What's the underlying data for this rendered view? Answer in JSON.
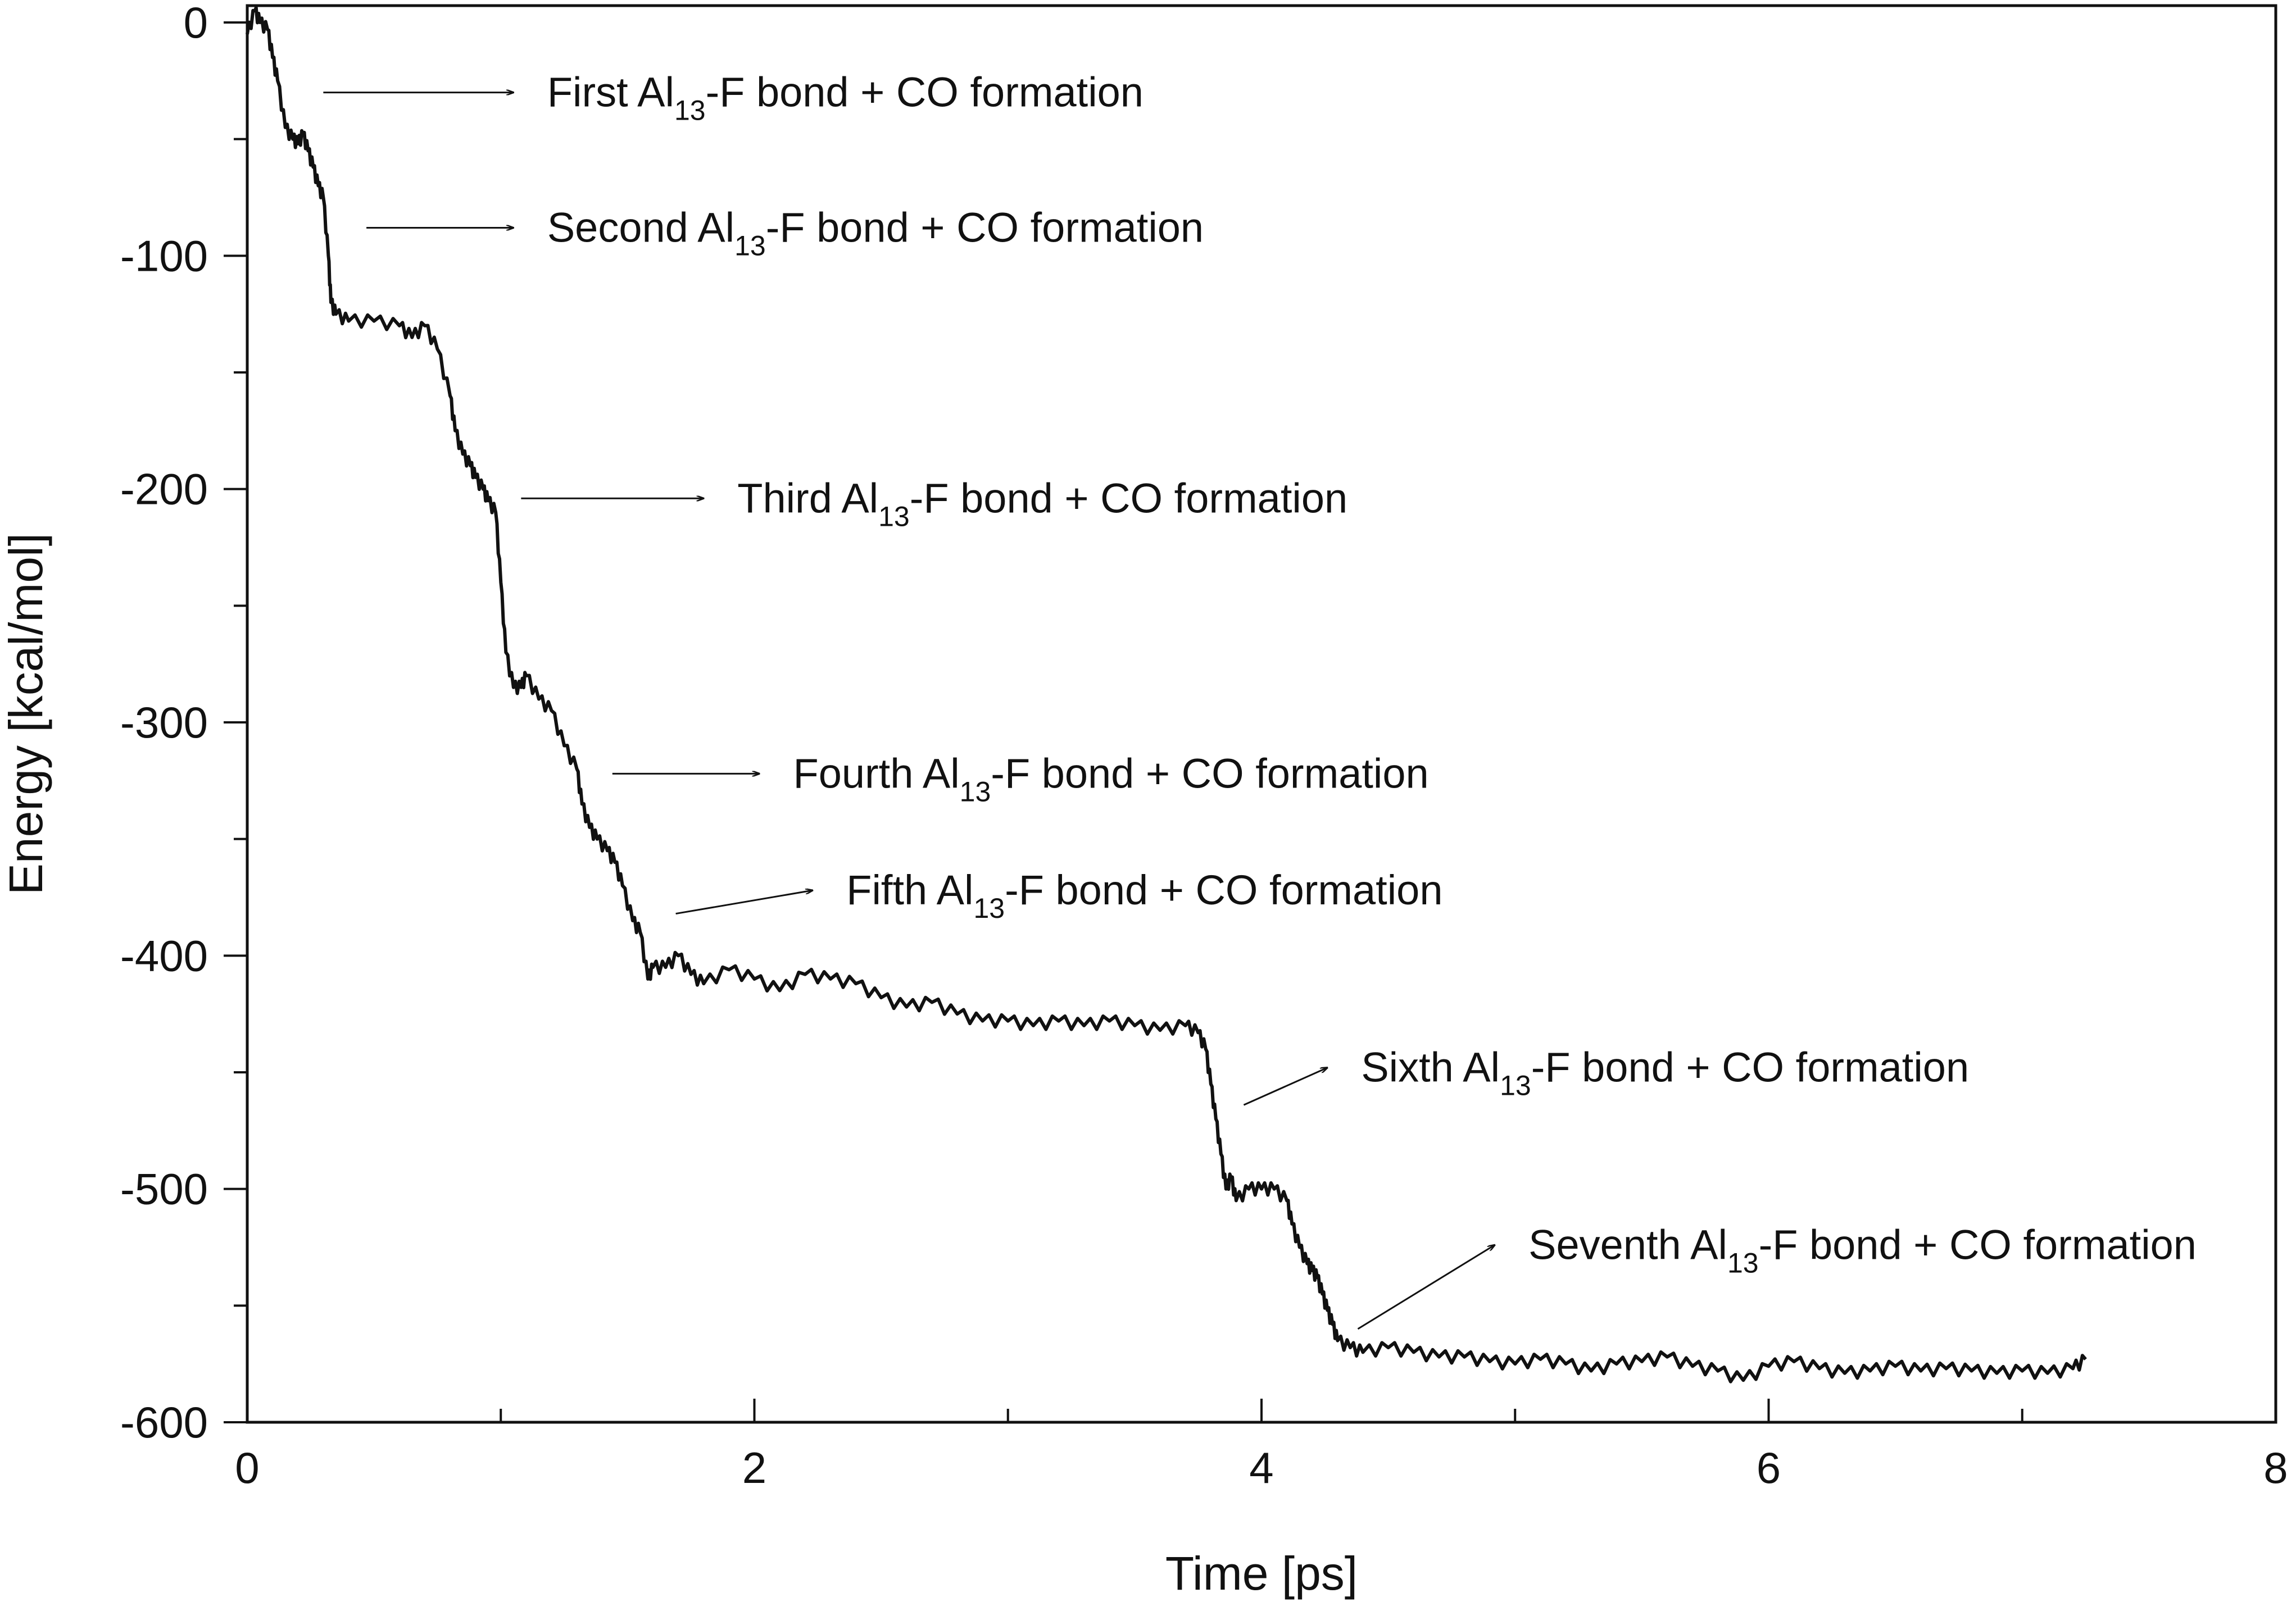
{
  "chart_data": {
    "type": "line",
    "title": "",
    "xlabel": "Time [ps]",
    "ylabel": "Energy [kcal/mol]",
    "xlim": [
      0,
      8
    ],
    "ylim": [
      -600,
      0
    ],
    "xticks": [
      0,
      2,
      4,
      6,
      8
    ],
    "xtick_labels": [
      "0",
      "2",
      "4",
      "6",
      "8"
    ],
    "x_minor_step": 1,
    "yticks": [
      0,
      -100,
      -200,
      -300,
      -400,
      -500,
      -600
    ],
    "ytick_labels": [
      "0",
      "-100",
      "-200",
      "-300",
      "-400",
      "-500",
      "-600"
    ],
    "y_minor_step": 50,
    "grid": false,
    "series": [
      {
        "name": "Energy",
        "color": "#111111",
        "x": [
          0.0,
          0.03,
          0.05,
          0.08,
          0.1,
          0.12,
          0.15,
          0.18,
          0.2,
          0.22,
          0.24,
          0.26,
          0.28,
          0.3,
          0.32,
          0.33,
          0.35,
          0.4,
          0.5,
          0.6,
          0.65,
          0.7,
          0.75,
          0.8,
          0.82,
          0.85,
          0.88,
          0.9,
          0.93,
          0.95,
          0.98,
          1.0,
          1.02,
          1.05,
          1.08,
          1.1,
          1.15,
          1.2,
          1.25,
          1.3,
          1.32,
          1.35,
          1.38,
          1.42,
          1.45,
          1.48,
          1.52,
          1.55,
          1.58,
          1.6,
          1.65,
          1.7,
          1.75,
          1.8,
          1.9,
          2.0,
          2.1,
          2.2,
          2.3,
          2.4,
          2.5,
          2.6,
          2.7,
          2.8,
          2.9,
          3.0,
          3.1,
          3.2,
          3.3,
          3.4,
          3.5,
          3.6,
          3.7,
          3.75,
          3.78,
          3.8,
          3.82,
          3.84,
          3.86,
          3.88,
          3.9,
          3.95,
          4.0,
          4.05,
          4.1,
          4.12,
          4.15,
          4.18,
          4.2,
          4.22,
          4.24,
          4.26,
          4.28,
          4.3,
          4.35,
          4.4,
          4.5,
          4.6,
          4.7,
          4.8,
          4.9,
          5.0,
          5.1,
          5.2,
          5.3,
          5.4,
          5.5,
          5.6,
          5.7,
          5.8,
          5.9,
          6.0,
          6.1,
          6.2,
          6.3,
          6.4,
          6.5,
          6.6,
          6.7,
          6.8,
          6.9,
          7.0,
          7.1,
          7.2,
          7.25
        ],
        "values": [
          -5,
          5,
          0,
          -3,
          -15,
          -25,
          -45,
          -50,
          -52,
          -48,
          -55,
          -62,
          -70,
          -75,
          -100,
          -120,
          -125,
          -128,
          -128,
          -130,
          -135,
          -130,
          -140,
          -160,
          -175,
          -185,
          -190,
          -195,
          -200,
          -205,
          -210,
          -240,
          -270,
          -285,
          -285,
          -280,
          -290,
          -295,
          -310,
          -320,
          -335,
          -345,
          -350,
          -355,
          -360,
          -370,
          -385,
          -390,
          -410,
          -405,
          -405,
          -400,
          -408,
          -412,
          -406,
          -410,
          -415,
          -408,
          -410,
          -412,
          -418,
          -422,
          -420,
          -425,
          -428,
          -428,
          -430,
          -428,
          -430,
          -428,
          -430,
          -432,
          -430,
          -433,
          -440,
          -455,
          -470,
          -485,
          -500,
          -495,
          -505,
          -500,
          -500,
          -500,
          -505,
          -515,
          -525,
          -532,
          -535,
          -538,
          -545,
          -552,
          -558,
          -565,
          -568,
          -570,
          -568,
          -570,
          -572,
          -572,
          -574,
          -575,
          -573,
          -575,
          -578,
          -575,
          -574,
          -572,
          -576,
          -578,
          -582,
          -576,
          -574,
          -577,
          -579,
          -578,
          -576,
          -578,
          -577,
          -578,
          -579,
          -578,
          -579,
          -577,
          -573
        ]
      }
    ],
    "annotations": [
      {
        "pre": "First Al",
        "sub": "13",
        "post": "-F bond + CO formation",
        "arrow_from": [
          0.3,
          -30
        ],
        "arrow_to": [
          1.05,
          -30
        ]
      },
      {
        "pre": "Second Al",
        "sub": "13",
        "post": "-F bond + CO formation",
        "arrow_from": [
          0.47,
          -88
        ],
        "arrow_to": [
          1.05,
          -88
        ]
      },
      {
        "pre": "Third Al",
        "sub": "13",
        "post": "-F bond + CO formation",
        "arrow_from": [
          1.08,
          -204
        ],
        "arrow_to": [
          1.8,
          -204
        ]
      },
      {
        "pre": "Fourth Al",
        "sub": "13",
        "post": "-F bond + CO formation",
        "arrow_from": [
          1.44,
          -322
        ],
        "arrow_to": [
          2.02,
          -322
        ]
      },
      {
        "pre": "Fifth Al",
        "sub": "13",
        "post": "-F bond + CO formation",
        "arrow_from": [
          1.69,
          -382
        ],
        "arrow_to": [
          2.23,
          -372
        ]
      },
      {
        "pre": "Sixth Al",
        "sub": "13",
        "post": "-F bond + CO formation",
        "arrow_from": [
          3.93,
          -464
        ],
        "arrow_to": [
          4.26,
          -448
        ]
      },
      {
        "pre": "Seventh Al",
        "sub": "13",
        "post": "-F bond + CO formation",
        "arrow_from": [
          4.38,
          -560
        ],
        "arrow_to": [
          4.92,
          -524
        ]
      }
    ]
  }
}
